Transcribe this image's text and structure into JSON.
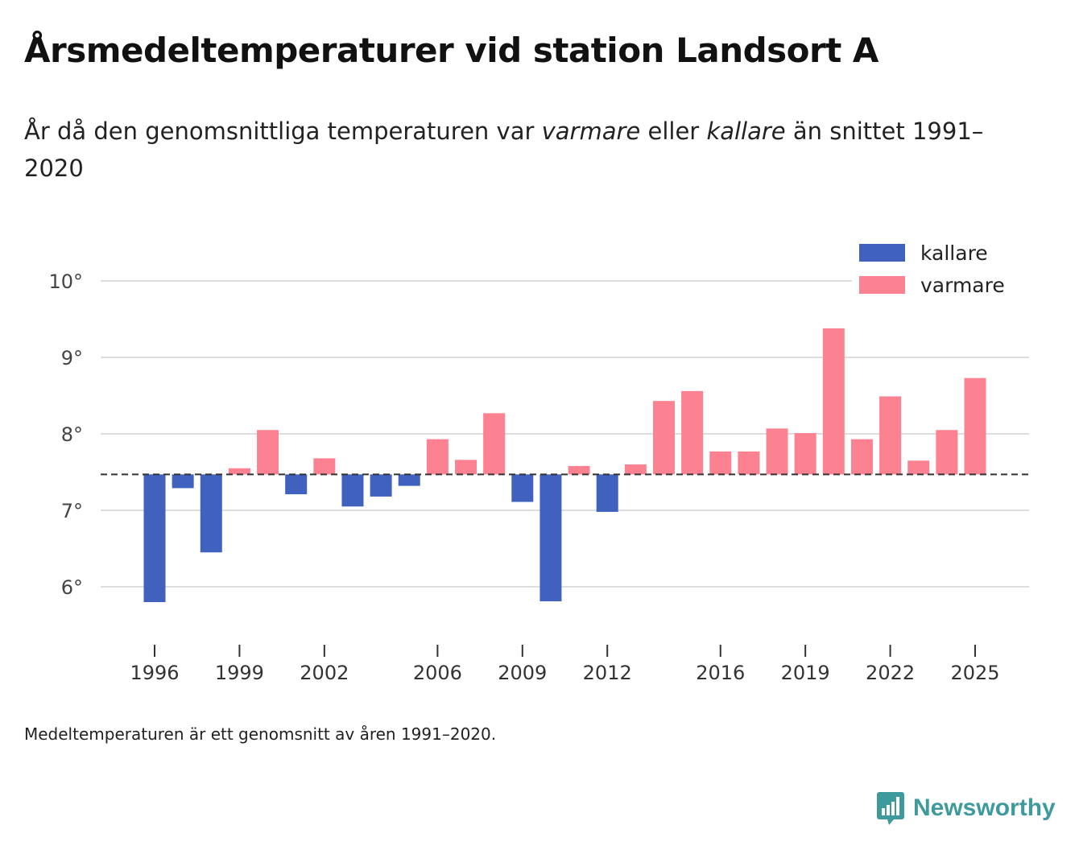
{
  "title": "Årsmedeltemperaturer vid station Landsort A",
  "subtitle": {
    "prefix": "År då den genomsnittliga temperaturen var ",
    "warm_word": "varmare",
    "middle": " eller ",
    "cold_word": "kallare",
    "suffix": " än snittet 1991–2020"
  },
  "footnote": "Medeltemperaturen är ett genomsnitt av åren 1991–2020.",
  "brand": {
    "name": "Newsworthy",
    "icon": "newsworthy-logo-icon"
  },
  "colors": {
    "kallare": "#4062be",
    "varmare": "#fd8291",
    "grid": "#dddddd",
    "baseline": "#333333",
    "brand": "#3e9a9c"
  },
  "chart_data": {
    "type": "bar",
    "baseline": 7.47,
    "ylim": [
      5.3,
      10.3
    ],
    "yticks": [
      6,
      7,
      8,
      9,
      10
    ],
    "ytick_labels": [
      "6°",
      "7°",
      "8°",
      "9°",
      "10°"
    ],
    "xticks": [
      1996,
      1999,
      2002,
      2006,
      2009,
      2012,
      2016,
      2019,
      2022,
      2025
    ],
    "xtick_labels": [
      "1996",
      "1999",
      "2002",
      "2006",
      "2009",
      "2012",
      "2016",
      "2019",
      "2022",
      "2025"
    ],
    "xlim": [
      1995,
      2026.9
    ],
    "legend": [
      {
        "key": "kallare",
        "label": "kallare"
      },
      {
        "key": "varmare",
        "label": "varmare"
      }
    ],
    "legend_position": "top-right",
    "categories": [
      1996,
      1997,
      1998,
      1999,
      2000,
      2001,
      2002,
      2003,
      2004,
      2005,
      2006,
      2007,
      2008,
      2009,
      2010,
      2011,
      2012,
      2013,
      2014,
      2015,
      2016,
      2017,
      2018,
      2019,
      2020,
      2021,
      2022,
      2023,
      2024,
      2025
    ],
    "values": [
      5.8,
      7.29,
      6.45,
      7.55,
      8.05,
      7.21,
      7.68,
      7.05,
      7.18,
      7.32,
      7.93,
      7.66,
      8.27,
      7.11,
      5.81,
      7.58,
      6.98,
      7.6,
      8.43,
      8.56,
      7.77,
      7.77,
      8.07,
      8.01,
      9.38,
      7.93,
      8.49,
      7.65,
      8.05,
      8.73
    ]
  }
}
